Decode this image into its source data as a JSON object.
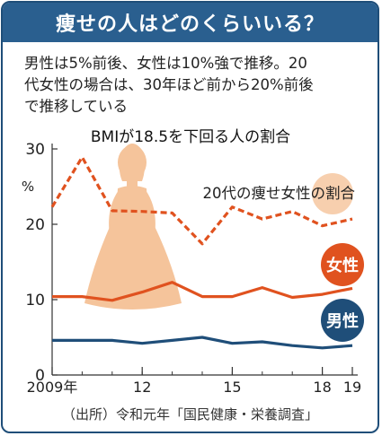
{
  "header": {
    "title": "痩せの人はどのくらいいる？"
  },
  "summary": {
    "lines": [
      "男性は5%前後、女性は10%強で推移。20",
      "代女性の場合は、30年ほど前から20%前後",
      "で推移している"
    ]
  },
  "colors": {
    "title_bg": "#2a5f8f",
    "female": "#e0521f",
    "male": "#1f4e79",
    "female_20s": "#e0521f",
    "silhouette": "#f5c49b"
  },
  "icons": {
    "decoration": "woman-in-dress-silhouette"
  },
  "chart_data": {
    "type": "line",
    "title": "BMIが18.5を下回る人の割合",
    "ylabel": "%",
    "ylim": [
      0,
      30
    ],
    "yticks": [
      "0",
      "10",
      "20",
      "30"
    ],
    "xlim": [
      2009,
      2019
    ],
    "xticks": [
      {
        "value": 2009,
        "label": "2009年"
      },
      {
        "value": 2012,
        "label": "12"
      },
      {
        "value": 2015,
        "label": "15"
      },
      {
        "value": 2018,
        "label": "18"
      },
      {
        "value": 2019,
        "label": "19"
      }
    ],
    "x": [
      2009,
      2010,
      2011,
      2012,
      2013,
      2014,
      2015,
      2016,
      2017,
      2018,
      2019
    ],
    "series": [
      {
        "name": "20代の痩せ女性の割合",
        "style": "dashed",
        "values": [
          22.3,
          28.9,
          21.8,
          21.7,
          21.5,
          17.4,
          22.3,
          20.7,
          21.7,
          19.8,
          20.7
        ]
      },
      {
        "name": "女性",
        "style": "solid",
        "values": [
          10.4,
          10.4,
          9.9,
          11.0,
          12.3,
          10.4,
          10.4,
          11.6,
          10.3,
          10.7,
          11.5
        ]
      },
      {
        "name": "男性",
        "style": "solid",
        "values": [
          4.6,
          4.6,
          4.6,
          4.2,
          4.6,
          5.0,
          4.2,
          4.4,
          3.9,
          3.6,
          3.9
        ]
      }
    ]
  },
  "footer": {
    "source": "（出所）令和元年「国民健康・栄養調査」"
  }
}
